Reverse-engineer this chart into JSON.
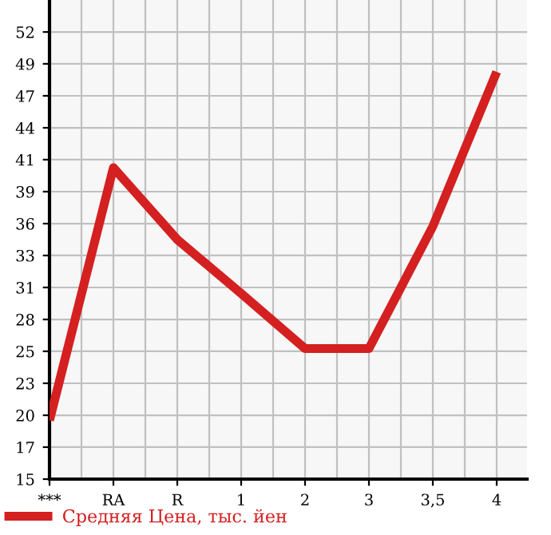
{
  "chart_data": {
    "type": "line",
    "categories": [
      "***",
      "RA",
      "R",
      "1",
      "2",
      "3",
      "3,5",
      "4"
    ],
    "series": [
      {
        "name": "Средняя Цена, тыс. йен",
        "color": "#d42020",
        "values": [
          19.6,
          40.7,
          34.7,
          30.2,
          25.6,
          25.6,
          35.8,
          48.7
        ]
      }
    ],
    "ylim": [
      14.7,
      54.7
    ],
    "yticks": [
      {
        "value": 14.7,
        "label": "15"
      },
      {
        "value": 17.37,
        "label": "17"
      },
      {
        "value": 20.03,
        "label": "20"
      },
      {
        "value": 22.7,
        "label": "23"
      },
      {
        "value": 25.37,
        "label": "25"
      },
      {
        "value": 28.03,
        "label": "28"
      },
      {
        "value": 30.7,
        "label": "31"
      },
      {
        "value": 33.37,
        "label": "33"
      },
      {
        "value": 36.03,
        "label": "36"
      },
      {
        "value": 38.7,
        "label": "39"
      },
      {
        "value": 41.37,
        "label": "41"
      },
      {
        "value": 44.03,
        "label": "44"
      },
      {
        "value": 46.7,
        "label": "47"
      },
      {
        "value": 49.37,
        "label": "49"
      },
      {
        "value": 52.03,
        "label": "52"
      }
    ],
    "grid": true,
    "legend": "bottom left",
    "marker": "none",
    "line_style": "solid"
  }
}
